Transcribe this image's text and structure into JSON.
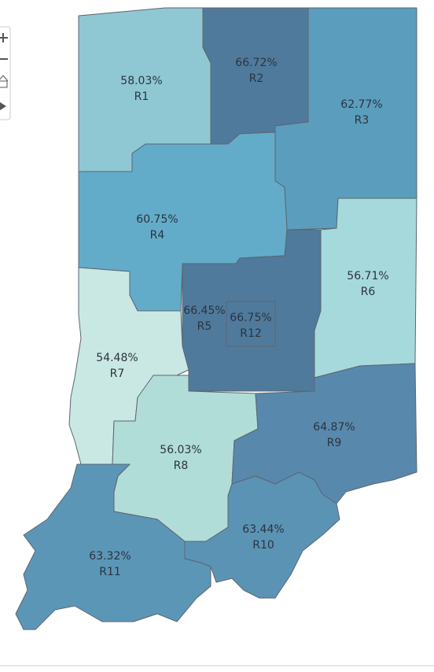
{
  "regions": [
    {
      "name": "R1",
      "value_label": "58.03%",
      "color": "#8fc8d3"
    },
    {
      "name": "R2",
      "value_label": "66.72%",
      "color": "#4f7a9c"
    },
    {
      "name": "R3",
      "value_label": "62.77%",
      "color": "#5b9dbd"
    },
    {
      "name": "R4",
      "value_label": "60.75%",
      "color": "#62acc9"
    },
    {
      "name": "R5",
      "value_label": "66.45%",
      "color": "#4f7a9c"
    },
    {
      "name": "R6",
      "value_label": "56.71%",
      "color": "#a6d9db"
    },
    {
      "name": "R7",
      "value_label": "54.48%",
      "color": "#c9e8e3"
    },
    {
      "name": "R8",
      "value_label": "56.03%",
      "color": "#b1ddd8"
    },
    {
      "name": "R9",
      "value_label": "64.87%",
      "color": "#5889ad"
    },
    {
      "name": "R10",
      "value_label": "63.44%",
      "color": "#5b93b5"
    },
    {
      "name": "R11",
      "value_label": "63.32%",
      "color": "#5b96b7"
    },
    {
      "name": "R12",
      "value_label": "66.75%",
      "color": "#4f7a9c"
    }
  ]
}
